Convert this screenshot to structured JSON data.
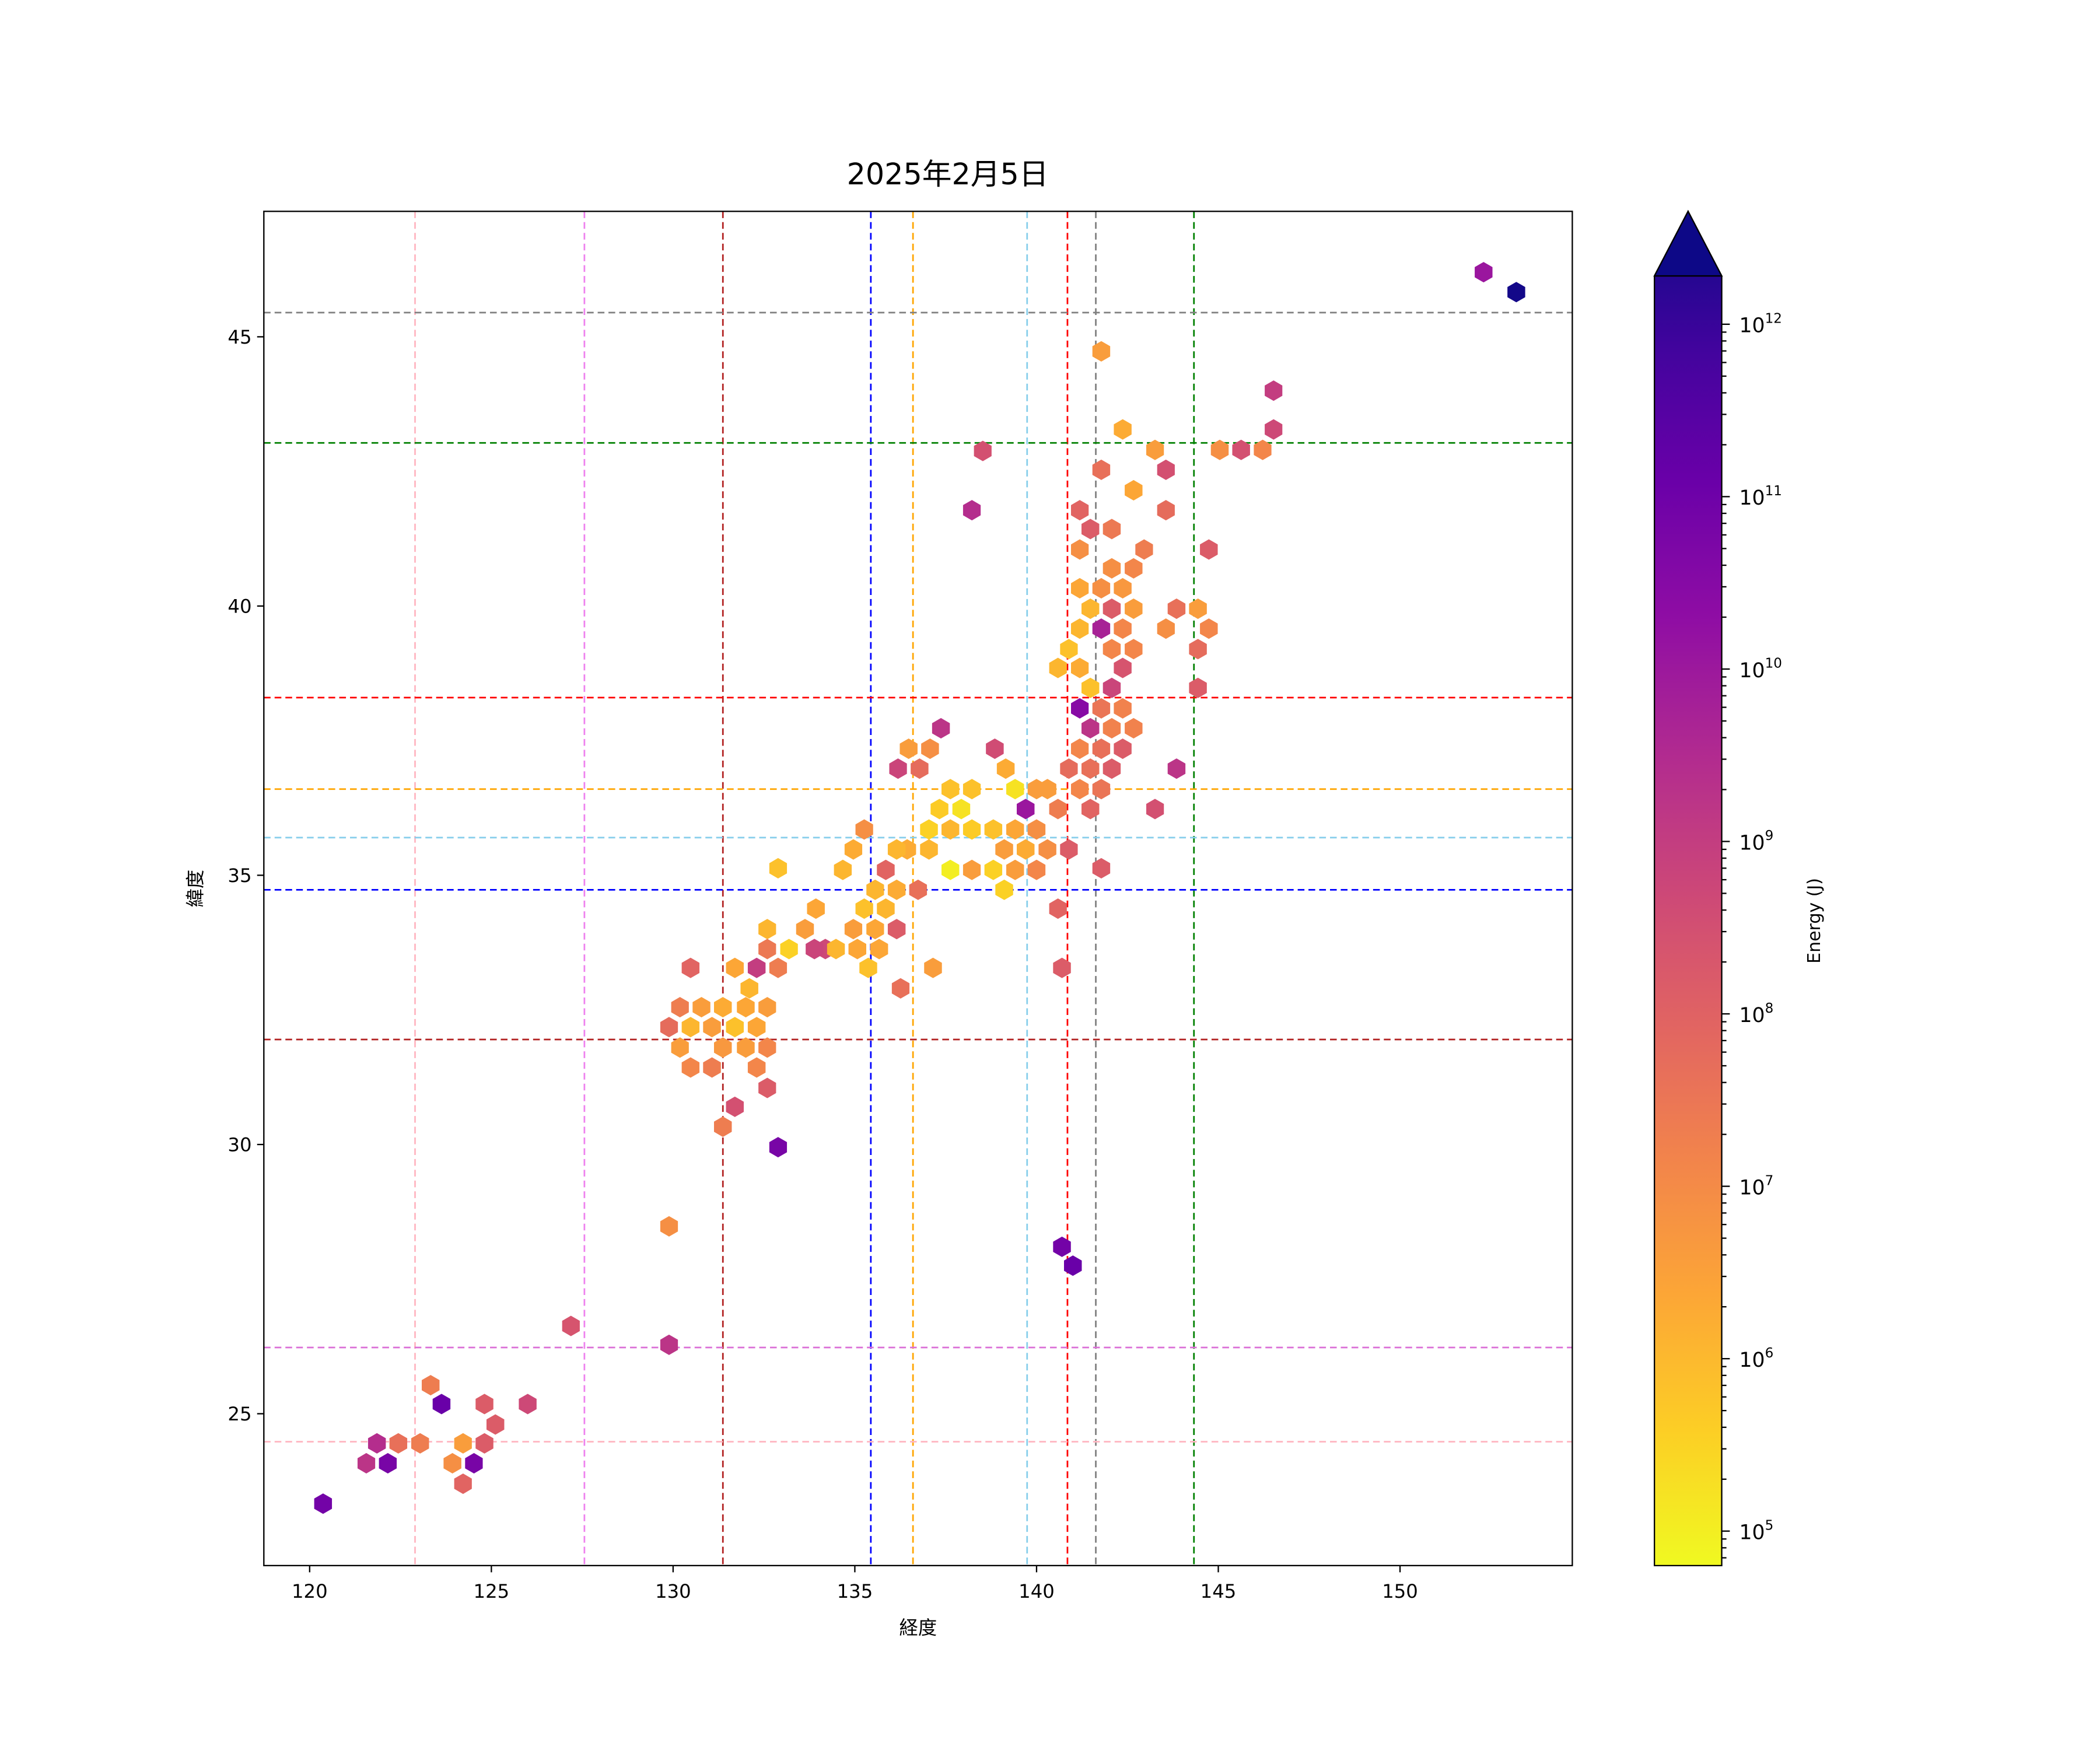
{
  "chart_data": {
    "type": "hexbin",
    "title": "2025年2月5日",
    "xlabel": "経度",
    "ylabel": "緯度",
    "xlim": [
      118.74,
      154.74
    ],
    "ylim": [
      22.18,
      47.33
    ],
    "xticks": [
      120,
      125,
      130,
      135,
      140,
      145,
      150
    ],
    "yticks": [
      25,
      30,
      35,
      40,
      45
    ],
    "grid": false,
    "colorbar": {
      "label": "Energy (J)",
      "scale": "log",
      "log_range": [
        4.8,
        12.28
      ],
      "extend": "max",
      "tick_exponents": [
        5,
        6,
        7,
        8,
        9,
        10,
        11,
        12
      ],
      "tick_labels": [
        "10",
        "10",
        "10",
        "10",
        "10",
        "10",
        "10",
        "10"
      ],
      "tick_sup": [
        "5",
        "6",
        "7",
        "8",
        "9",
        "10",
        "11",
        "12"
      ],
      "colormap": "plasma_r",
      "colormap_stops": [
        "#0d0887",
        "#41049d",
        "#6a00a8",
        "#8f0da4",
        "#b12a90",
        "#cc4778",
        "#e16462",
        "#f2844b",
        "#fca636",
        "#fcce25",
        "#f0f921"
      ]
    },
    "vlines": [
      {
        "x": 122.9,
        "color": "#ffb6c1"
      },
      {
        "x": 127.56,
        "color": "#ee82ee"
      },
      {
        "x": 131.37,
        "color": "#b22222"
      },
      {
        "x": 135.44,
        "color": "#0000ff"
      },
      {
        "x": 136.6,
        "color": "#ffa500"
      },
      {
        "x": 139.74,
        "color": "#87ceeb"
      },
      {
        "x": 140.85,
        "color": "#ff0000"
      },
      {
        "x": 141.63,
        "color": "#808080"
      },
      {
        "x": 144.33,
        "color": "#008000"
      }
    ],
    "hlines": [
      {
        "y": 45.45,
        "color": "#808080"
      },
      {
        "y": 43.03,
        "color": "#008000"
      },
      {
        "y": 38.3,
        "color": "#ff0000"
      },
      {
        "y": 36.6,
        "color": "#ffa500"
      },
      {
        "y": 35.7,
        "color": "#87ceeb"
      },
      {
        "y": 34.73,
        "color": "#0000ff"
      },
      {
        "y": 31.95,
        "color": "#b22222"
      },
      {
        "y": 26.23,
        "color": "#da70d6"
      },
      {
        "y": 24.48,
        "color": "#ffb6c1"
      }
    ],
    "hex_pixels_note": "",
    "hexes_lon_lat_log10E": [
      [
        152.3,
        46.2,
        9.8
      ],
      [
        153.2,
        45.83,
        12.2
      ],
      [
        141.78,
        44.73,
        6.5
      ],
      [
        146.52,
        44.0,
        8.8
      ],
      [
        142.37,
        43.28,
        6.2
      ],
      [
        143.26,
        42.9,
        6.5
      ],
      [
        146.52,
        43.28,
        8.5
      ],
      [
        145.04,
        42.9,
        6.8
      ],
      [
        145.63,
        42.9,
        8.3
      ],
      [
        146.22,
        42.9,
        7.0
      ],
      [
        138.52,
        42.88,
        8.3
      ],
      [
        141.78,
        42.53,
        7.5
      ],
      [
        143.56,
        42.53,
        8.3
      ],
      [
        142.67,
        42.15,
        6.3
      ],
      [
        138.22,
        41.78,
        9.2
      ],
      [
        141.19,
        41.78,
        7.8
      ],
      [
        143.56,
        41.78,
        7.6
      ],
      [
        141.48,
        41.43,
        8.0
      ],
      [
        142.07,
        41.43,
        7.3
      ],
      [
        144.74,
        41.05,
        8.0
      ],
      [
        142.96,
        41.05,
        7.2
      ],
      [
        141.19,
        41.05,
        6.8
      ],
      [
        142.67,
        40.7,
        7.0
      ],
      [
        142.07,
        40.7,
        6.8
      ],
      [
        141.19,
        40.33,
        6.3
      ],
      [
        141.78,
        40.33,
        6.8
      ],
      [
        142.37,
        40.33,
        6.6
      ],
      [
        143.85,
        39.95,
        7.5
      ],
      [
        144.44,
        39.95,
        6.5
      ],
      [
        141.48,
        39.95,
        6.0
      ],
      [
        142.07,
        39.95,
        8.0
      ],
      [
        142.67,
        39.95,
        6.5
      ],
      [
        143.56,
        39.58,
        6.8
      ],
      [
        144.74,
        39.58,
        7.0
      ],
      [
        141.19,
        39.58,
        6.0
      ],
      [
        141.78,
        39.58,
        9.5
      ],
      [
        142.37,
        39.58,
        7.0
      ],
      [
        144.44,
        39.2,
        7.6
      ],
      [
        140.89,
        39.2,
        5.8
      ],
      [
        142.07,
        39.2,
        7.0
      ],
      [
        142.67,
        39.2,
        7.0
      ],
      [
        140.59,
        38.85,
        6.0
      ],
      [
        141.19,
        38.85,
        6.2
      ],
      [
        142.37,
        38.85,
        8.2
      ],
      [
        141.48,
        38.48,
        5.8
      ],
      [
        142.07,
        38.48,
        8.6
      ],
      [
        144.44,
        38.48,
        8.0
      ],
      [
        141.19,
        38.1,
        10.2
      ],
      [
        141.78,
        38.1,
        7.4
      ],
      [
        142.37,
        38.1,
        7.1
      ],
      [
        141.48,
        37.73,
        9.0
      ],
      [
        142.07,
        37.73,
        7.1
      ],
      [
        142.67,
        37.73,
        7.1
      ],
      [
        137.37,
        37.73,
        9.0
      ],
      [
        138.85,
        37.35,
        8.4
      ],
      [
        136.48,
        37.35,
        6.5
      ],
      [
        137.07,
        37.35,
        6.8
      ],
      [
        141.19,
        37.35,
        7.0
      ],
      [
        141.78,
        37.35,
        7.5
      ],
      [
        142.37,
        37.35,
        8.0
      ],
      [
        136.19,
        36.98,
        8.6
      ],
      [
        136.78,
        36.98,
        7.6
      ],
      [
        139.15,
        36.98,
        6.2
      ],
      [
        140.89,
        36.98,
        7.6
      ],
      [
        141.48,
        36.98,
        7.5
      ],
      [
        142.07,
        36.98,
        8.0
      ],
      [
        143.85,
        36.98,
        9.0
      ],
      [
        137.63,
        36.6,
        5.8
      ],
      [
        138.22,
        36.6,
        5.8
      ],
      [
        139.41,
        36.6,
        5.2
      ],
      [
        140.3,
        36.6,
        6.5
      ],
      [
        141.19,
        36.6,
        7.0
      ],
      [
        141.78,
        36.6,
        7.4
      ],
      [
        140.0,
        36.6,
        6.5
      ],
      [
        137.33,
        36.23,
        5.6
      ],
      [
        137.93,
        36.23,
        5.2
      ],
      [
        139.7,
        36.23,
        9.8
      ],
      [
        140.59,
        36.23,
        7.2
      ],
      [
        141.48,
        36.23,
        7.8
      ],
      [
        143.26,
        36.23,
        8.3
      ],
      [
        137.04,
        35.85,
        5.5
      ],
      [
        137.63,
        35.85,
        6.0
      ],
      [
        138.22,
        35.85,
        5.6
      ],
      [
        138.81,
        35.85,
        5.8
      ],
      [
        139.41,
        35.85,
        6.3
      ],
      [
        140.0,
        35.85,
        6.8
      ],
      [
        135.26,
        35.85,
        6.8
      ],
      [
        136.44,
        35.48,
        6.2
      ],
      [
        137.04,
        35.48,
        6.0
      ],
      [
        139.11,
        35.48,
        6.5
      ],
      [
        139.7,
        35.48,
        6.2
      ],
      [
        140.3,
        35.48,
        6.8
      ],
      [
        140.89,
        35.48,
        8.0
      ],
      [
        134.96,
        35.48,
        6.2
      ],
      [
        136.15,
        35.48,
        6.0
      ],
      [
        135.85,
        35.1,
        7.8
      ],
      [
        137.63,
        35.1,
        5.0
      ],
      [
        138.22,
        35.1,
        6.5
      ],
      [
        138.81,
        35.1,
        5.5
      ],
      [
        139.41,
        35.1,
        6.5
      ],
      [
        140.0,
        35.1,
        7.0
      ],
      [
        134.67,
        35.1,
        6.0
      ],
      [
        141.78,
        35.13,
        8.0
      ],
      [
        135.56,
        34.73,
        6.0
      ],
      [
        136.15,
        34.73,
        6.2
      ],
      [
        136.74,
        34.73,
        7.5
      ],
      [
        139.11,
        34.73,
        5.5
      ],
      [
        140.59,
        34.38,
        7.8
      ],
      [
        135.26,
        34.38,
        5.8
      ],
      [
        135.85,
        34.38,
        6.0
      ],
      [
        133.63,
        34.0,
        6.5
      ],
      [
        133.93,
        34.38,
        6.3
      ],
      [
        134.96,
        34.0,
        6.5
      ],
      [
        135.56,
        34.0,
        6.3
      ],
      [
        136.15,
        34.0,
        8.0
      ],
      [
        132.59,
        34.0,
        6.0
      ],
      [
        132.89,
        35.13,
        5.8
      ],
      [
        134.19,
        33.63,
        8.5
      ],
      [
        134.48,
        33.63,
        6.0
      ],
      [
        135.07,
        33.63,
        6.3
      ],
      [
        135.67,
        33.63,
        6.3
      ],
      [
        133.19,
        33.63,
        5.5
      ],
      [
        132.59,
        33.63,
        7.3
      ],
      [
        133.89,
        33.63,
        8.6
      ],
      [
        132.3,
        33.28,
        8.8
      ],
      [
        132.89,
        33.28,
        7.2
      ],
      [
        135.37,
        33.28,
        5.8
      ],
      [
        137.15,
        33.28,
        6.5
      ],
      [
        140.7,
        33.28,
        8.0
      ],
      [
        130.48,
        33.28,
        7.8
      ],
      [
        131.7,
        33.28,
        6.3
      ],
      [
        136.26,
        32.9,
        7.5
      ],
      [
        132.1,
        32.9,
        6.0
      ],
      [
        130.19,
        32.55,
        7.2
      ],
      [
        130.78,
        32.55,
        6.5
      ],
      [
        131.37,
        32.55,
        6.2
      ],
      [
        132.0,
        32.55,
        6.3
      ],
      [
        132.59,
        32.55,
        6.5
      ],
      [
        129.89,
        32.18,
        7.6
      ],
      [
        130.48,
        32.18,
        6.0
      ],
      [
        131.07,
        32.18,
        6.5
      ],
      [
        131.7,
        32.18,
        5.8
      ],
      [
        132.3,
        32.18,
        6.3
      ],
      [
        130.19,
        31.8,
        6.5
      ],
      [
        131.37,
        31.8,
        6.6
      ],
      [
        132.0,
        31.8,
        6.5
      ],
      [
        132.59,
        31.8,
        7.0
      ],
      [
        130.48,
        31.43,
        7.0
      ],
      [
        131.07,
        31.43,
        7.2
      ],
      [
        132.3,
        31.43,
        7.0
      ],
      [
        132.59,
        31.05,
        8.0
      ],
      [
        131.7,
        30.7,
        8.3
      ],
      [
        131.37,
        30.33,
        7.2
      ],
      [
        132.89,
        29.95,
        10.5
      ],
      [
        129.89,
        28.48,
        6.8
      ],
      [
        140.7,
        28.1,
        10.6
      ],
      [
        141.0,
        27.75,
        10.8
      ],
      [
        127.19,
        26.63,
        8.2
      ],
      [
        129.89,
        26.28,
        9.0
      ],
      [
        123.33,
        25.53,
        7.2
      ],
      [
        123.63,
        25.18,
        10.8
      ],
      [
        126.0,
        25.18,
        8.5
      ],
      [
        124.81,
        25.18,
        8.0
      ],
      [
        125.11,
        24.8,
        8.0
      ],
      [
        121.85,
        24.45,
        9.2
      ],
      [
        122.44,
        24.45,
        7.5
      ],
      [
        123.04,
        24.45,
        7.2
      ],
      [
        124.22,
        24.45,
        6.5
      ],
      [
        124.81,
        24.45,
        8.0
      ],
      [
        121.56,
        24.08,
        9.0
      ],
      [
        122.15,
        24.08,
        10.5
      ],
      [
        123.93,
        24.08,
        6.8
      ],
      [
        124.52,
        24.08,
        10.5
      ],
      [
        124.22,
        23.7,
        7.8
      ],
      [
        120.37,
        23.33,
        10.6
      ]
    ]
  }
}
